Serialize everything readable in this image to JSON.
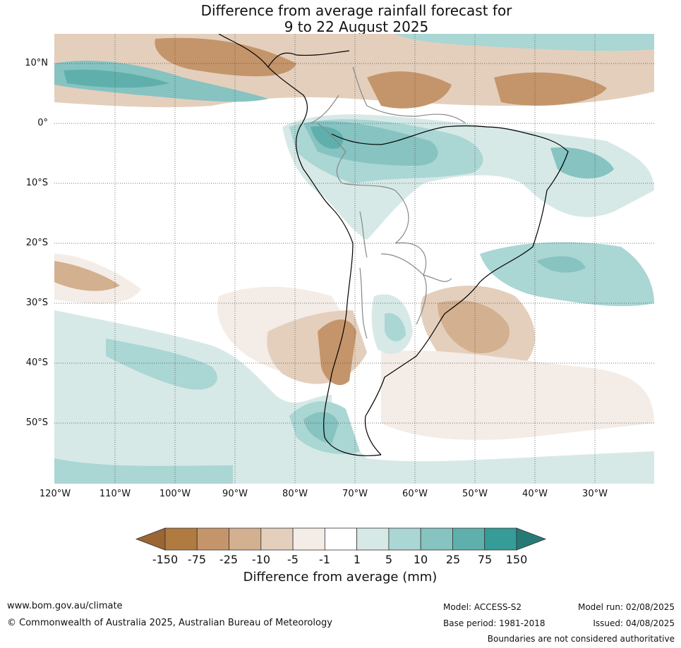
{
  "title_line1": "Difference from average rainfall forecast for",
  "title_line2": "9 to 22 August 2025",
  "lat_labels": [
    "10°N",
    "0°",
    "10°S",
    "20°S",
    "30°S",
    "40°S",
    "50°S"
  ],
  "lon_labels": [
    "120°W",
    "110°W",
    "100°W",
    "90°W",
    "80°W",
    "70°W",
    "60°W",
    "50°W",
    "40°W",
    "30°W"
  ],
  "legend": {
    "title": "Difference from average (mm)",
    "ticks": [
      "-150",
      "-75",
      "-25",
      "-10",
      "-5",
      "-1",
      "1",
      "5",
      "10",
      "25",
      "75",
      "150"
    ],
    "colors": [
      "#9b6534",
      "#b07a41",
      "#c4956a",
      "#d3b08f",
      "#e4cfbd",
      "#f4ece6",
      "#ffffff",
      "#d6e9e7",
      "#aad6d4",
      "#86c3c1",
      "#5fb0ad",
      "#359c98",
      "#267a76"
    ]
  },
  "footer": {
    "website": "www.bom.gov.au/climate",
    "copyright": "© Commonwealth of Australia 2025, Australian Bureau of Meteorology",
    "model": "Model: ACCESS-S2",
    "base_period": "Base period: 1981-2018",
    "model_run": "Model run: 02/08/2025",
    "issued": "Issued: 04/08/2025",
    "disclaimer": "Boundaries are not considered authoritative"
  }
}
